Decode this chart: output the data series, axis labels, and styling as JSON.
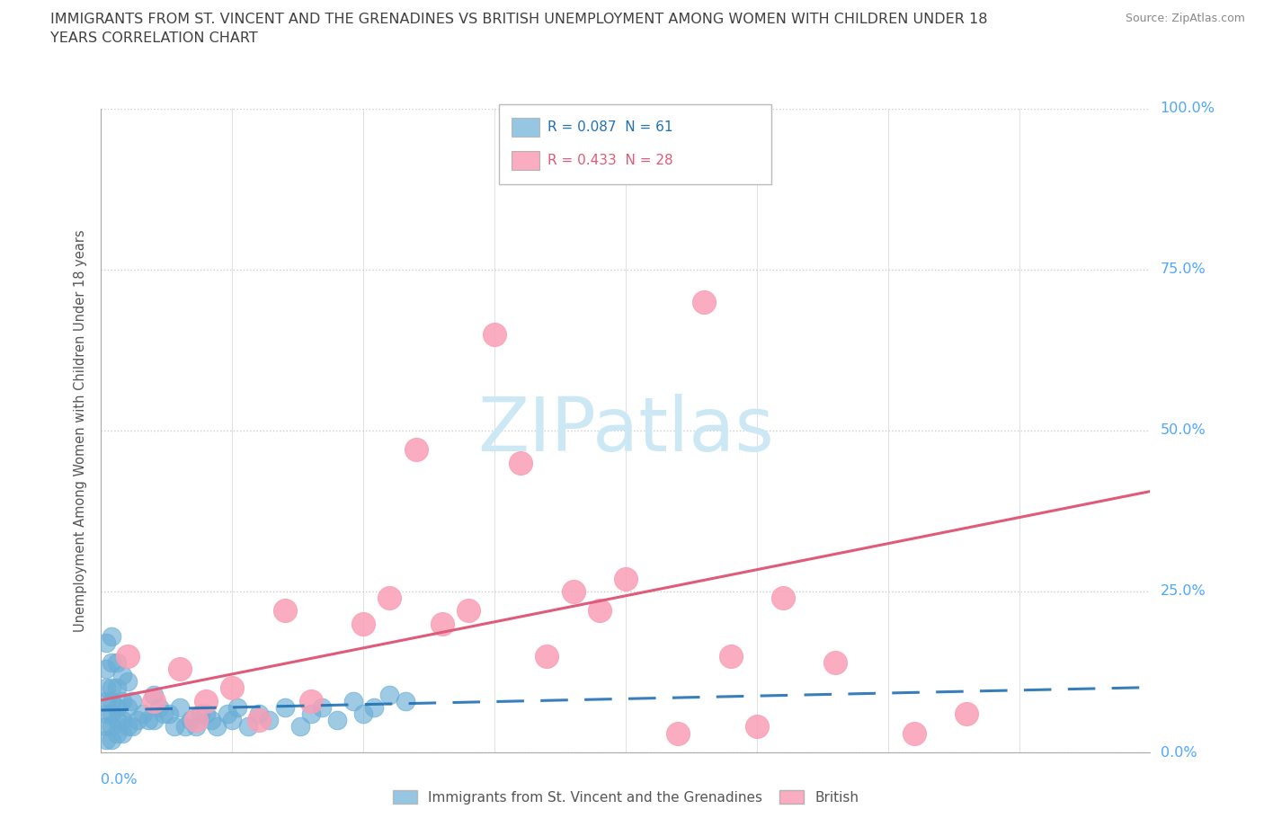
{
  "title_line1": "IMMIGRANTS FROM ST. VINCENT AND THE GRENADINES VS BRITISH UNEMPLOYMENT AMONG WOMEN WITH CHILDREN UNDER 18",
  "title_line2": "YEARS CORRELATION CHART",
  "source": "Source: ZipAtlas.com",
  "ylabel": "Unemployment Among Women with Children Under 18 years",
  "x_label_bottom_left": "0.0%",
  "xlim": [
    0,
    0.2
  ],
  "ylim": [
    0,
    1.0
  ],
  "ytick_labels": [
    "0.0%",
    "25.0%",
    "50.0%",
    "75.0%",
    "100.0%"
  ],
  "ytick_values": [
    0,
    0.25,
    0.5,
    0.75,
    1.0
  ],
  "legend1_label": "R = 0.087  N = 61",
  "legend2_label": "R = 0.433  N = 28",
  "legend_bottom_label1": "Immigrants from St. Vincent and the Grenadines",
  "legend_bottom_label2": "British",
  "blue_color": "#6baed6",
  "pink_color": "#fa9fb5",
  "blue_line_color": "#2171b5",
  "pink_line_color": "#e05a7a",
  "R_blue": 0.087,
  "N_blue": 61,
  "R_pink": 0.433,
  "N_pink": 28,
  "blue_scatter_x": [
    0.001,
    0.001,
    0.001,
    0.001,
    0.001,
    0.001,
    0.001,
    0.002,
    0.002,
    0.002,
    0.002,
    0.002,
    0.002,
    0.002,
    0.003,
    0.003,
    0.003,
    0.003,
    0.003,
    0.004,
    0.004,
    0.004,
    0.004,
    0.005,
    0.005,
    0.005,
    0.006,
    0.006,
    0.007,
    0.008,
    0.009,
    0.01,
    0.01,
    0.011,
    0.012,
    0.013,
    0.014,
    0.015,
    0.016,
    0.017,
    0.018,
    0.019,
    0.02,
    0.021,
    0.022,
    0.024,
    0.025,
    0.026,
    0.028,
    0.03,
    0.032,
    0.035,
    0.038,
    0.04,
    0.042,
    0.045,
    0.048,
    0.05,
    0.052,
    0.055,
    0.058
  ],
  "blue_scatter_y": [
    0.02,
    0.04,
    0.06,
    0.08,
    0.1,
    0.13,
    0.17,
    0.02,
    0.04,
    0.06,
    0.08,
    0.1,
    0.14,
    0.18,
    0.03,
    0.05,
    0.07,
    0.1,
    0.14,
    0.03,
    0.05,
    0.08,
    0.12,
    0.04,
    0.07,
    0.11,
    0.04,
    0.08,
    0.05,
    0.06,
    0.05,
    0.05,
    0.09,
    0.07,
    0.06,
    0.06,
    0.04,
    0.07,
    0.04,
    0.05,
    0.04,
    0.06,
    0.06,
    0.05,
    0.04,
    0.06,
    0.05,
    0.07,
    0.04,
    0.06,
    0.05,
    0.07,
    0.04,
    0.06,
    0.07,
    0.05,
    0.08,
    0.06,
    0.07,
    0.09,
    0.08
  ],
  "pink_scatter_x": [
    0.005,
    0.01,
    0.015,
    0.018,
    0.02,
    0.025,
    0.03,
    0.035,
    0.04,
    0.05,
    0.055,
    0.06,
    0.065,
    0.07,
    0.075,
    0.08,
    0.085,
    0.09,
    0.095,
    0.1,
    0.11,
    0.115,
    0.12,
    0.125,
    0.13,
    0.14,
    0.155,
    0.165
  ],
  "pink_scatter_y": [
    0.15,
    0.08,
    0.13,
    0.05,
    0.08,
    0.1,
    0.05,
    0.22,
    0.08,
    0.2,
    0.24,
    0.47,
    0.2,
    0.22,
    0.65,
    0.45,
    0.15,
    0.25,
    0.22,
    0.27,
    0.03,
    0.7,
    0.15,
    0.04,
    0.24,
    0.14,
    0.03,
    0.06
  ],
  "background_color": "#ffffff",
  "grid_color": "#cccccc",
  "title_color": "#404040",
  "watermark_text": "ZIPatlas",
  "watermark_color": "#cde8f5",
  "xtick_positions": [
    0.0,
    0.025,
    0.05,
    0.075,
    0.1,
    0.125,
    0.15,
    0.175,
    0.2
  ]
}
